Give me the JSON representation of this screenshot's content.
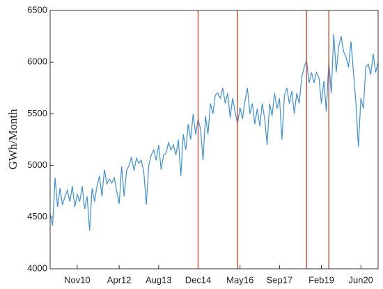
{
  "chart_data": {
    "type": "line",
    "y_label": "GWh/Month",
    "x": [
      "2009-12",
      "2010-01",
      "2010-02",
      "2010-03",
      "2010-04",
      "2010-05",
      "2010-06",
      "2010-07",
      "2010-08",
      "2010-09",
      "2010-10",
      "2010-11",
      "2010-12",
      "2011-01",
      "2011-02",
      "2011-03",
      "2011-04",
      "2011-05",
      "2011-06",
      "2011-07",
      "2011-08",
      "2011-09",
      "2011-10",
      "2011-11",
      "2011-12",
      "2012-01",
      "2012-02",
      "2012-03",
      "2012-04",
      "2012-05",
      "2012-06",
      "2012-07",
      "2012-08",
      "2012-09",
      "2012-10",
      "2012-11",
      "2012-12",
      "2013-01",
      "2013-02",
      "2013-03",
      "2013-04",
      "2013-05",
      "2013-06",
      "2013-07",
      "2013-08",
      "2013-09",
      "2013-10",
      "2013-11",
      "2013-12",
      "2014-01",
      "2014-02",
      "2014-03",
      "2014-04",
      "2014-05",
      "2014-06",
      "2014-07",
      "2014-08",
      "2014-09",
      "2014-10",
      "2014-11",
      "2014-12",
      "2015-01",
      "2015-02",
      "2015-03",
      "2015-04",
      "2015-05",
      "2015-06",
      "2015-07",
      "2015-08",
      "2015-09",
      "2015-10",
      "2015-11",
      "2015-12",
      "2016-01",
      "2016-02",
      "2016-03",
      "2016-04",
      "2016-05",
      "2016-06",
      "2016-07",
      "2016-08",
      "2016-09",
      "2016-10",
      "2016-11",
      "2016-12",
      "2017-01",
      "2017-02",
      "2017-03",
      "2017-04",
      "2017-05",
      "2017-06",
      "2017-07",
      "2017-08",
      "2017-09",
      "2017-10",
      "2017-11",
      "2017-12",
      "2018-01",
      "2018-02",
      "2018-03",
      "2018-04",
      "2018-05",
      "2018-06",
      "2018-07",
      "2018-08",
      "2018-09",
      "2018-10",
      "2018-11",
      "2018-12",
      "2019-01",
      "2019-02",
      "2019-03",
      "2019-04",
      "2019-05",
      "2019-06",
      "2019-07",
      "2019-08",
      "2019-09",
      "2019-10",
      "2019-11",
      "2019-12",
      "2020-01",
      "2020-02",
      "2020-03",
      "2020-04",
      "2020-05",
      "2020-06",
      "2020-07",
      "2020-08",
      "2020-09",
      "2020-10",
      "2020-11",
      "2020-12",
      "2021-01"
    ],
    "series": [
      {
        "color": "#3b8fd8",
        "values": [
          4530,
          4420,
          4880,
          4600,
          4780,
          4620,
          4700,
          4760,
          4650,
          4800,
          4600,
          4720,
          4650,
          4800,
          4580,
          4700,
          4370,
          4780,
          4650,
          4800,
          4900,
          4700,
          4960,
          4820,
          4870,
          4830,
          4880,
          4750,
          4630,
          4990,
          4700,
          4950,
          5000,
          5080,
          4950,
          5070,
          5020,
          5050,
          4930,
          4620,
          5000,
          5100,
          5150,
          5050,
          5200,
          4960,
          5100,
          5120,
          5220,
          5150,
          5200,
          5100,
          5250,
          4900,
          5300,
          5150,
          5400,
          5250,
          5500,
          5300,
          5450,
          5350,
          5050,
          5480,
          5300,
          5600,
          5500,
          5680,
          5700,
          5650,
          5750,
          5600,
          5700,
          5460,
          5650,
          5520,
          5400,
          5560,
          5450,
          5620,
          5750,
          5500,
          5600,
          5400,
          5550,
          5380,
          5600,
          5450,
          5200,
          5600,
          5480,
          5700,
          5550,
          5650,
          5250,
          5680,
          5750,
          5600,
          5720,
          5500,
          5700,
          5600,
          5850,
          5950,
          6020,
          5800,
          5900,
          5800,
          5900,
          5850,
          5600,
          5820,
          5520,
          6010,
          5700,
          6270,
          5900,
          6150,
          6250,
          6100,
          6050,
          5950,
          6200,
          5900,
          5600,
          5180,
          5650,
          5550,
          5950,
          5980,
          5880,
          6080,
          5900,
          6000
        ]
      }
    ],
    "xlim": [
      "2009-12",
      "2021-01"
    ],
    "xticks": [
      {
        "value": "2010-11",
        "label": "Nov10"
      },
      {
        "value": "2012-04",
        "label": "Apr12"
      },
      {
        "value": "2013-08",
        "label": "Aug13"
      },
      {
        "value": "2014-12",
        "label": "Dec14"
      },
      {
        "value": "2016-05",
        "label": "May16"
      },
      {
        "value": "2017-09",
        "label": "Sep17"
      },
      {
        "value": "2019-02",
        "label": "Feb19"
      },
      {
        "value": "2020-06",
        "label": "Jun20"
      }
    ],
    "ylim": [
      4000,
      6500
    ],
    "yticks": [
      4000,
      4500,
      5000,
      5500,
      6000,
      6500
    ],
    "vlines": [
      "2014-12",
      "2016-04",
      "2018-08",
      "2019-05"
    ],
    "vline_color": "#cd5a3e"
  }
}
